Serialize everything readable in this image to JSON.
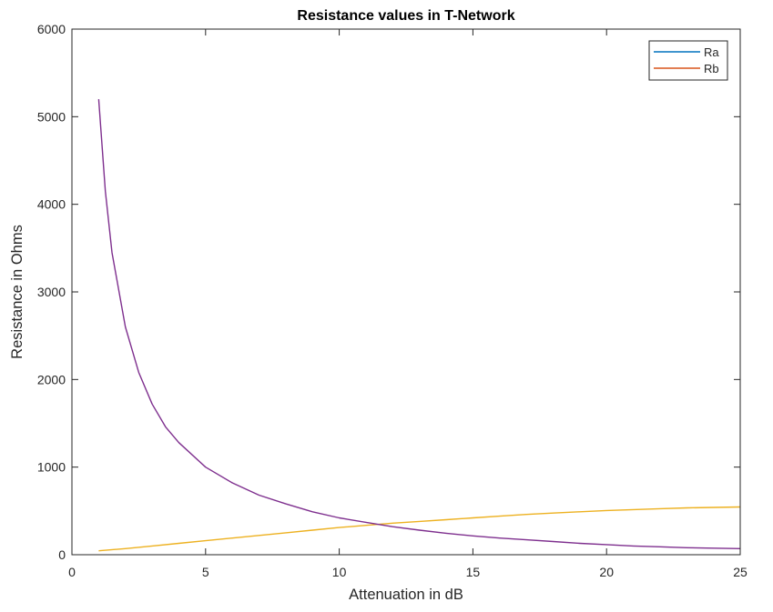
{
  "chart_data": {
    "type": "line",
    "title": "Resistance values in T-Network",
    "xlabel": "Attenuation in dB",
    "ylabel": "Resistance in Ohms",
    "xlim": [
      0,
      25
    ],
    "ylim": [
      0,
      6000
    ],
    "xticks": [
      0,
      5,
      10,
      15,
      20,
      25
    ],
    "yticks": [
      0,
      1000,
      2000,
      3000,
      4000,
      5000,
      6000
    ],
    "grid": false,
    "legend_position": "top-right",
    "legend": [
      {
        "label": "Ra",
        "color": "#0072BD"
      },
      {
        "label": "Rb",
        "color": "#D95319"
      }
    ],
    "series": [
      {
        "color": "#EDB120",
        "x": [
          1,
          2,
          3,
          4,
          5,
          6,
          7,
          8,
          9,
          10,
          11,
          12,
          13,
          14,
          15,
          16,
          17,
          18,
          19,
          20,
          21,
          22,
          23,
          24,
          25
        ],
        "y": [
          45,
          70,
          100,
          130,
          160,
          190,
          220,
          250,
          280,
          310,
          335,
          360,
          380,
          400,
          420,
          440,
          460,
          475,
          490,
          505,
          515,
          525,
          535,
          540,
          545
        ]
      },
      {
        "color": "#7E2F8E",
        "x": [
          1,
          1.25,
          1.5,
          2,
          2.5,
          3,
          3.5,
          4,
          5,
          6,
          7,
          8,
          9,
          10,
          11,
          12,
          13,
          14,
          15,
          16,
          17,
          18,
          19,
          20,
          21,
          22,
          23,
          24,
          25
        ],
        "y": [
          5200,
          4150,
          3450,
          2600,
          2080,
          1720,
          1460,
          1280,
          1000,
          820,
          680,
          580,
          490,
          420,
          370,
          320,
          280,
          245,
          215,
          190,
          170,
          150,
          130,
          115,
          100,
          90,
          80,
          75,
          70
        ]
      }
    ]
  }
}
